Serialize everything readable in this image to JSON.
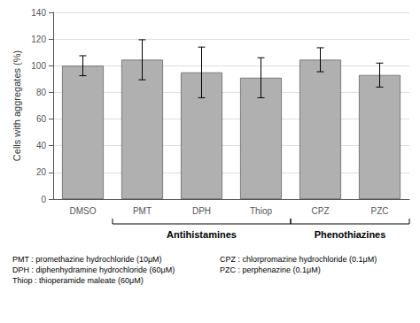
{
  "chart_data": {
    "type": "bar",
    "categories": [
      "DMSO",
      "PMT",
      "DPH",
      "Thiop",
      "CPZ",
      "PZC"
    ],
    "values": [
      100.0,
      104.5,
      95.0,
      91.0,
      104.5,
      93.0
    ],
    "errors": [
      7.5,
      15.0,
      19.0,
      15.0,
      9.0,
      9.0
    ],
    "color": "#b0b0b0",
    "ylabel": "Cells with aggregates (%)",
    "ylim": [
      0,
      140
    ],
    "yticks": [
      0,
      20,
      40,
      60,
      80,
      100,
      120,
      140
    ],
    "grid": true,
    "annotations": [
      {
        "text": "Antihistamines",
        "categories": [
          "PMT",
          "DPH",
          "Thiop"
        ]
      },
      {
        "text": "Phenothiazines",
        "categories": [
          "CPZ",
          "PZC"
        ]
      }
    ],
    "notes": [
      [
        "PMT : promethazine hydrochloride (10μM)",
        "DPH : diphenhydramine hydrochloride (60μM)",
        "Thiop : thioperamide maleate (60μM)"
      ],
      [
        "CPZ : chlorpromazine hydrochloride (0.1μM)",
        "PZC : perphenazine (0.1μM)"
      ]
    ]
  }
}
